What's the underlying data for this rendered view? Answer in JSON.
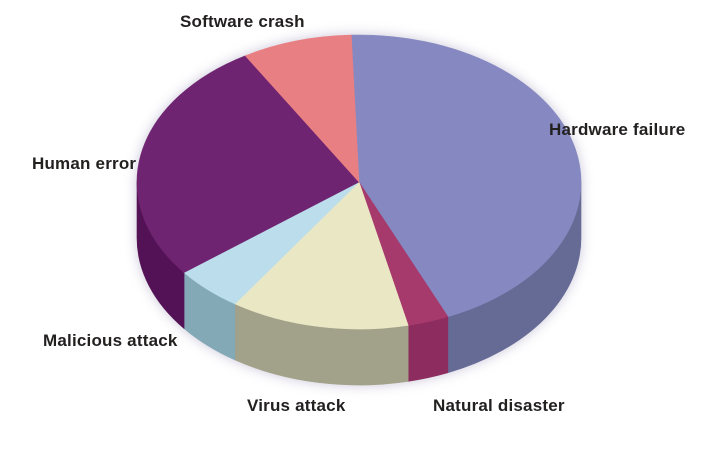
{
  "page": {
    "background_color": "#ffffff",
    "text_color": "#232020"
  },
  "chart_data": {
    "type": "pie",
    "effect": "3d",
    "title": "",
    "labels": [
      "Hardware failure",
      "Natural disaster",
      "Virus attack",
      "Malicious attack",
      "Human error",
      "Software crash"
    ],
    "values": [
      44,
      3,
      13,
      5,
      27,
      8
    ],
    "value_labels_shown": false,
    "legend": "none",
    "label_style": "callout-text-around-pie",
    "start_angle_deg": -92,
    "clockwise": true,
    "colors_top": [
      "#8689c1",
      "#a63a6c",
      "#eae7c5",
      "#bcdeec",
      "#6f2471",
      "#e87f83"
    ],
    "colors_side": [
      "#666b96",
      "#8d2c5e",
      "#a2a189",
      "#83a8b6",
      "#541256",
      "#b05c60"
    ]
  }
}
